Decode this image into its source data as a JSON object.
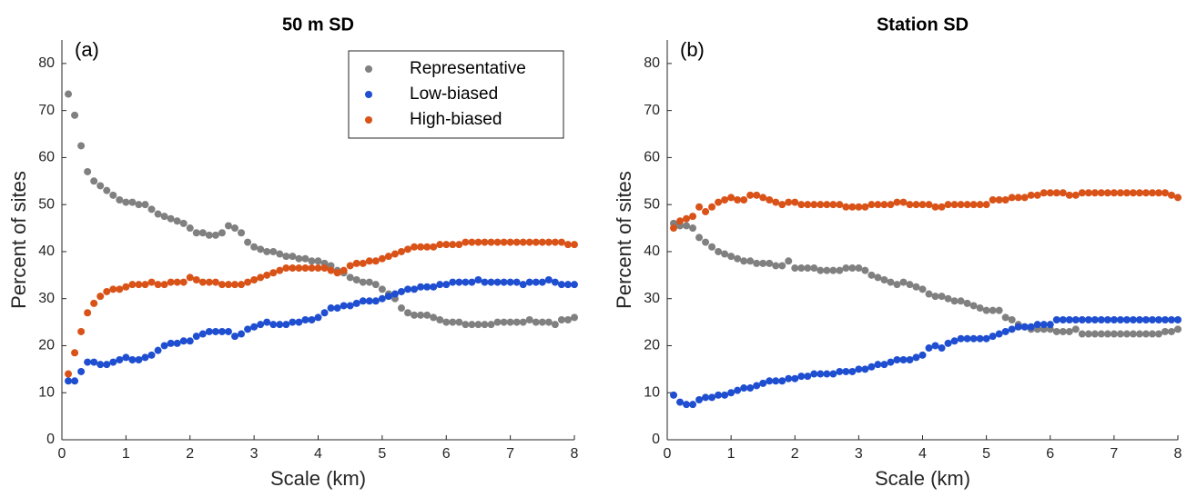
{
  "chart_data": [
    {
      "type": "scatter",
      "title": "50 m SD",
      "panel_label": "(a)",
      "xlabel": "Scale (km)",
      "ylabel": "Percent of sites",
      "xlim": [
        0,
        8
      ],
      "ylim": [
        0,
        85
      ],
      "xticks": [
        0,
        1,
        2,
        3,
        4,
        5,
        6,
        7,
        8
      ],
      "yticks": [
        0,
        10,
        20,
        30,
        40,
        50,
        60,
        70,
        80
      ],
      "legend": "upper right",
      "x": [
        0.1,
        0.2,
        0.3,
        0.4,
        0.5,
        0.6,
        0.7,
        0.8,
        0.9,
        1.0,
        1.1,
        1.2,
        1.3,
        1.4,
        1.5,
        1.6,
        1.7,
        1.8,
        1.9,
        2.0,
        2.1,
        2.2,
        2.3,
        2.4,
        2.5,
        2.6,
        2.7,
        2.8,
        2.9,
        3.0,
        3.1,
        3.2,
        3.3,
        3.4,
        3.5,
        3.6,
        3.7,
        3.8,
        3.9,
        4.0,
        4.1,
        4.2,
        4.3,
        4.4,
        4.5,
        4.6,
        4.7,
        4.8,
        4.9,
        5.0,
        5.1,
        5.2,
        5.3,
        5.4,
        5.5,
        5.6,
        5.7,
        5.8,
        5.9,
        6.0,
        6.1,
        6.2,
        6.3,
        6.4,
        6.5,
        6.6,
        6.7,
        6.8,
        6.9,
        7.0,
        7.1,
        7.2,
        7.3,
        7.4,
        7.5,
        7.6,
        7.7,
        7.8,
        7.9,
        8.0
      ],
      "series": [
        {
          "name": "Representative",
          "color": "#808080",
          "values": [
            73.5,
            69,
            62.5,
            57,
            55,
            54,
            53,
            52,
            51,
            50.5,
            50.5,
            50,
            50,
            49,
            48,
            47.5,
            47,
            46.5,
            46,
            45,
            44,
            44,
            43.5,
            43.5,
            44,
            45.5,
            45,
            44,
            42,
            41,
            40.5,
            40,
            40,
            39.5,
            39,
            39,
            38.5,
            38.5,
            38,
            38,
            37.5,
            37,
            36,
            35.5,
            34.5,
            34,
            33.5,
            33.5,
            33,
            32,
            31,
            30,
            28,
            27,
            26.5,
            26.5,
            26.5,
            26,
            25.5,
            25,
            25,
            25,
            24.5,
            24.5,
            24.5,
            24.5,
            24.5,
            25,
            25,
            25,
            25,
            25,
            25.5,
            25,
            25,
            25,
            24.5,
            25.5,
            25.5,
            26
          ]
        },
        {
          "name": "Low-biased",
          "color": "#1f4fd0",
          "values": [
            12.5,
            12.5,
            14.5,
            16.5,
            16.5,
            16,
            16,
            16.5,
            17,
            17.5,
            17,
            17,
            17.5,
            18,
            19,
            20,
            20.5,
            20.5,
            21,
            21,
            22,
            22.5,
            23,
            23,
            23,
            23,
            22,
            22.5,
            23.5,
            24,
            24.5,
            25,
            24.5,
            24.5,
            24.5,
            25,
            25,
            25.5,
            25.5,
            26,
            27,
            28,
            28,
            28.5,
            28.5,
            29,
            29.5,
            29.5,
            29.5,
            30,
            30.5,
            31,
            31.5,
            32,
            32,
            32.5,
            32.5,
            32.5,
            33,
            33,
            33.5,
            33.5,
            33.5,
            33.5,
            34,
            33.5,
            33.5,
            33.5,
            33.5,
            33.5,
            33.5,
            33,
            33.5,
            33.5,
            33.5,
            34,
            33.5,
            33,
            33,
            33
          ]
        },
        {
          "name": "High-biased",
          "color": "#d95319",
          "values": [
            14,
            18.5,
            23,
            27,
            29,
            30.5,
            31.5,
            32,
            32,
            32.5,
            33,
            33,
            33,
            33.5,
            33,
            33,
            33.5,
            33.5,
            33.5,
            34.5,
            34,
            33.5,
            33.5,
            33.5,
            33,
            33,
            33,
            33,
            33.5,
            34,
            34.5,
            35,
            35.5,
            36,
            36.5,
            36.5,
            36.5,
            36.5,
            36.5,
            36.5,
            36.5,
            36,
            35.5,
            36,
            37,
            37.5,
            37.5,
            38,
            38,
            38.5,
            39,
            39.5,
            40,
            40.5,
            41,
            41,
            41,
            41,
            41.5,
            41.5,
            41.5,
            41.5,
            42,
            42,
            42,
            42,
            42,
            42,
            42,
            42,
            42,
            42,
            42,
            42,
            42,
            42,
            42,
            42,
            41.5,
            41.5
          ]
        }
      ]
    },
    {
      "type": "scatter",
      "title": "Station SD",
      "panel_label": "(b)",
      "xlabel": "Scale (km)",
      "ylabel": "Percent of sites",
      "xlim": [
        0,
        8
      ],
      "ylim": [
        0,
        85
      ],
      "xticks": [
        0,
        1,
        2,
        3,
        4,
        5,
        6,
        7,
        8
      ],
      "yticks": [
        0,
        10,
        20,
        30,
        40,
        50,
        60,
        70,
        80
      ],
      "x": [
        0.1,
        0.2,
        0.3,
        0.4,
        0.5,
        0.6,
        0.7,
        0.8,
        0.9,
        1.0,
        1.1,
        1.2,
        1.3,
        1.4,
        1.5,
        1.6,
        1.7,
        1.8,
        1.9,
        2.0,
        2.1,
        2.2,
        2.3,
        2.4,
        2.5,
        2.6,
        2.7,
        2.8,
        2.9,
        3.0,
        3.1,
        3.2,
        3.3,
        3.4,
        3.5,
        3.6,
        3.7,
        3.8,
        3.9,
        4.0,
        4.1,
        4.2,
        4.3,
        4.4,
        4.5,
        4.6,
        4.7,
        4.8,
        4.9,
        5.0,
        5.1,
        5.2,
        5.3,
        5.4,
        5.5,
        5.6,
        5.7,
        5.8,
        5.9,
        6.0,
        6.1,
        6.2,
        6.3,
        6.4,
        6.5,
        6.6,
        6.7,
        6.8,
        6.9,
        7.0,
        7.1,
        7.2,
        7.3,
        7.4,
        7.5,
        7.6,
        7.7,
        7.8,
        7.9,
        8.0
      ],
      "series": [
        {
          "color": "#808080",
          "values": [
            46,
            45.5,
            45.5,
            45,
            43,
            42,
            41,
            40,
            39.5,
            39,
            38.5,
            38,
            38,
            37.5,
            37.5,
            37.5,
            37,
            37,
            38,
            36.5,
            36.5,
            36.5,
            36.5,
            36,
            36,
            36,
            36,
            36.5,
            36.5,
            36.5,
            36,
            35,
            34.5,
            34,
            33.5,
            33,
            33.5,
            33,
            32.5,
            32,
            31,
            30.5,
            30.5,
            30,
            29.5,
            29.5,
            29,
            28.5,
            28,
            27.5,
            27.5,
            27.5,
            26,
            25.5,
            24.5,
            24,
            23.5,
            23.5,
            23.5,
            23.5,
            23,
            23,
            23,
            23.5,
            22.5,
            22.5,
            22.5,
            22.5,
            22.5,
            22.5,
            22.5,
            22.5,
            22.5,
            22.5,
            22.5,
            22.5,
            22.5,
            23,
            23,
            23.5
          ]
        },
        {
          "color": "#1f4fd0",
          "values": [
            9.5,
            8,
            7.5,
            7.5,
            8.5,
            9,
            9,
            9.5,
            9.5,
            10,
            10.5,
            11,
            11,
            11.5,
            12,
            12.5,
            12.5,
            12.5,
            13,
            13,
            13.5,
            13.5,
            14,
            14,
            14,
            14,
            14.5,
            14.5,
            14.5,
            15,
            15,
            15.5,
            16,
            16,
            16.5,
            17,
            17,
            17,
            17.5,
            18,
            19.5,
            20,
            19.5,
            20.5,
            21,
            21.5,
            21.5,
            21.5,
            21.5,
            21.5,
            22,
            22.5,
            23,
            23.5,
            24,
            24,
            24,
            24.5,
            24.5,
            24.5,
            25.5,
            25.5,
            25.5,
            25.5,
            25.5,
            25.5,
            25.5,
            25.5,
            25.5,
            25.5,
            25.5,
            25.5,
            25.5,
            25.5,
            25.5,
            25.5,
            25.5,
            25.5,
            25.5,
            25.5
          ]
        },
        {
          "color": "#d95319",
          "values": [
            45,
            46.5,
            47,
            47.5,
            49.5,
            48.5,
            49.5,
            50.5,
            51,
            51.5,
            51,
            51,
            52,
            52,
            51.5,
            51,
            50.5,
            50,
            50.5,
            50.5,
            50,
            50,
            50,
            50,
            50,
            50,
            50,
            49.5,
            49.5,
            49.5,
            49.5,
            50,
            50,
            50,
            50,
            50.5,
            50.5,
            50,
            50,
            50,
            50,
            49.5,
            49.5,
            50,
            50,
            50,
            50,
            50,
            50,
            50,
            51,
            51,
            51,
            51.5,
            51.5,
            51.5,
            52,
            52,
            52.5,
            52.5,
            52.5,
            52.5,
            52,
            52,
            52.5,
            52.5,
            52.5,
            52.5,
            52.5,
            52.5,
            52.5,
            52.5,
            52.5,
            52.5,
            52.5,
            52.5,
            52.5,
            52.5,
            52,
            51.5
          ]
        }
      ]
    }
  ]
}
